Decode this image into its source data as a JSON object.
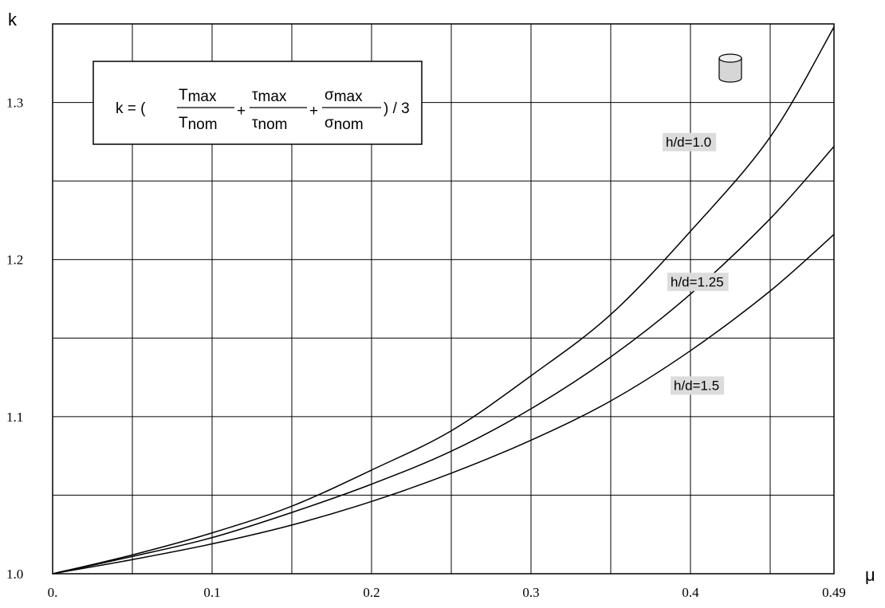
{
  "chart_data": {
    "type": "line",
    "xlabel": "μ",
    "ylabel": "k",
    "xlim": [
      0,
      0.49
    ],
    "ylim": [
      1.0,
      1.35
    ],
    "x_ticks": [
      {
        "value": 0,
        "label": "0."
      },
      {
        "value": 0.1,
        "label": "0.1"
      },
      {
        "value": 0.2,
        "label": "0.2"
      },
      {
        "value": 0.3,
        "label": "0.3"
      },
      {
        "value": 0.4,
        "label": "0.4"
      },
      {
        "value": 0.49,
        "label": "0.49"
      }
    ],
    "y_ticks": [
      {
        "value": 1.0,
        "label": "1.0"
      },
      {
        "value": 1.1,
        "label": "1.1"
      },
      {
        "value": 1.2,
        "label": "1.2"
      },
      {
        "value": 1.3,
        "label": "1.3"
      }
    ],
    "x_grid": [
      0.05,
      0.1,
      0.15,
      0.2,
      0.25,
      0.3,
      0.35,
      0.4,
      0.45
    ],
    "y_grid": [
      1.05,
      1.1,
      1.15,
      1.2,
      1.25,
      1.3
    ],
    "grid": true,
    "series": [
      {
        "name": "h/d=1.0",
        "label_at": {
          "x": 0.383,
          "y": 1.273
        },
        "points": [
          [
            0,
            1.0
          ],
          [
            0.05,
            1.012
          ],
          [
            0.1,
            1.026
          ],
          [
            0.15,
            1.043
          ],
          [
            0.2,
            1.066
          ],
          [
            0.25,
            1.091
          ],
          [
            0.3,
            1.126
          ],
          [
            0.35,
            1.165
          ],
          [
            0.4,
            1.218
          ],
          [
            0.45,
            1.278
          ],
          [
            0.49,
            1.348
          ]
        ]
      },
      {
        "name": "h/d=1.25",
        "label_at": {
          "x": 0.386,
          "y": 1.184
        },
        "points": [
          [
            0,
            1.0
          ],
          [
            0.05,
            1.011
          ],
          [
            0.1,
            1.023
          ],
          [
            0.15,
            1.039
          ],
          [
            0.2,
            1.057
          ],
          [
            0.25,
            1.078
          ],
          [
            0.3,
            1.105
          ],
          [
            0.35,
            1.138
          ],
          [
            0.4,
            1.178
          ],
          [
            0.45,
            1.226
          ],
          [
            0.49,
            1.272
          ]
        ]
      },
      {
        "name": "h/d=1.5",
        "label_at": {
          "x": 0.388,
          "y": 1.118
        },
        "points": [
          [
            0,
            1.0
          ],
          [
            0.05,
            1.009
          ],
          [
            0.1,
            1.019
          ],
          [
            0.15,
            1.031
          ],
          [
            0.2,
            1.046
          ],
          [
            0.25,
            1.064
          ],
          [
            0.3,
            1.085
          ],
          [
            0.35,
            1.11
          ],
          [
            0.4,
            1.142
          ],
          [
            0.45,
            1.18
          ],
          [
            0.49,
            1.216
          ]
        ]
      }
    ]
  },
  "formula": {
    "prefix": "k = (",
    "t_num": "T",
    "t_num_sub": "max",
    "t_den": "T",
    "t_den_sub": "nom",
    "plus1": "+",
    "tau_num": "τ",
    "tau_num_sub": "max",
    "tau_den": "τ",
    "tau_den_sub": "nom",
    "plus2": "+",
    "sig_num": "σ",
    "sig_num_sub": "max",
    "sig_den": "σ",
    "sig_den_sub": "nom",
    "suffix": ") / 3"
  },
  "icon": "cylinder-icon"
}
